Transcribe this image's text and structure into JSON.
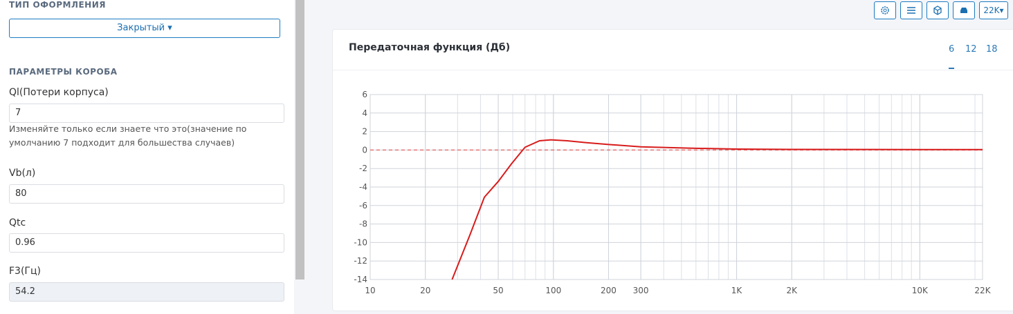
{
  "sidebar": {
    "design_heading": "ТИП ОФОРМЛЕНИЯ",
    "design_value": "Закрытый",
    "params_heading": "ПАРАМЕТРЫ КОРОБА",
    "fields": [
      {
        "label": "Ql(Потери корпуса)",
        "value": "7",
        "hint": "Изменяйте только если знаете что это(значение по умолчанию 7 подходит для большества случаев)"
      },
      {
        "label": "Vb(л)",
        "value": "80"
      },
      {
        "label": "Qtc",
        "value": "0.96"
      },
      {
        "label": "F3(Гц)",
        "value": "54.2"
      }
    ]
  },
  "toolbar": {
    "range": "22K"
  },
  "tabs": [
    "6",
    "12",
    "18"
  ],
  "chart_data": {
    "type": "line",
    "title": "Передаточная функция (Дб)",
    "log_x": true,
    "grid": true,
    "xlim": [
      10,
      22000
    ],
    "xticks": [
      10,
      20,
      50,
      100,
      200,
      300,
      {
        "value": 1000,
        "label": "1K"
      },
      {
        "value": 2000,
        "label": "2K"
      },
      {
        "value": 10000,
        "label": "10K"
      },
      {
        "value": 22000,
        "label": "22K"
      }
    ],
    "ylim": [
      -14,
      6
    ],
    "yticks": [
      6,
      4,
      2,
      0,
      -2,
      -4,
      -6,
      -8,
      -10,
      -12,
      -14
    ],
    "reference_line": {
      "value": 0,
      "color": "#e57373"
    },
    "series": [
      {
        "color": "#d81b1b",
        "x": [
          28,
          35,
          42,
          50,
          59,
          70,
          84,
          97,
          119,
          150,
          200,
          300,
          570,
          1000,
          2000,
          10000,
          22000
        ],
        "values": [
          -14,
          -9.2,
          -5.1,
          -3.4,
          -1.5,
          0.3,
          1.0,
          1.1,
          1.0,
          0.8,
          0.6,
          0.35,
          0.2,
          0.1,
          0.07,
          0.05,
          0.05
        ]
      }
    ]
  }
}
